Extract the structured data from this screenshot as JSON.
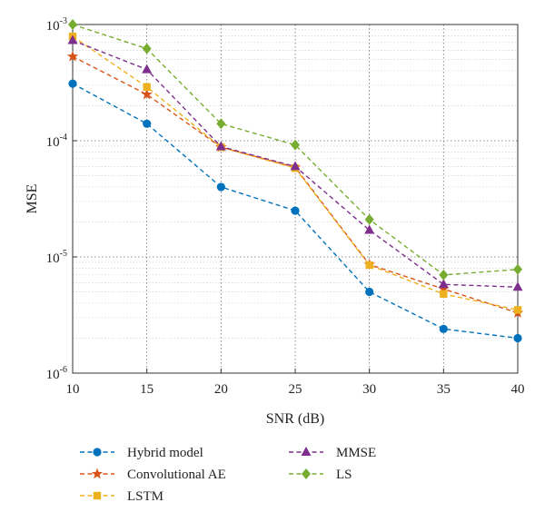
{
  "chart_data": {
    "type": "line",
    "xlabel": "SNR (dB)",
    "ylabel": "MSE",
    "x": [
      10,
      15,
      20,
      25,
      30,
      35,
      40
    ],
    "xlim": [
      10,
      40
    ],
    "ylim": [
      1e-06,
      0.001
    ],
    "yscale": "log",
    "xticks": [
      "10",
      "15",
      "20",
      "25",
      "30",
      "35",
      "40"
    ],
    "yticks": [
      {
        "base": "10",
        "exp": "-6",
        "value": 1e-06
      },
      {
        "base": "10",
        "exp": "-5",
        "value": 1e-05
      },
      {
        "base": "10",
        "exp": "-4",
        "value": 0.0001
      },
      {
        "base": "10",
        "exp": "-3",
        "value": 0.001
      }
    ],
    "grid": true,
    "legend_position": "bottom",
    "series": [
      {
        "name": "Hybrid model",
        "color": "#0072BD",
        "marker": "circle",
        "values": [
          0.00031,
          0.00014,
          4e-05,
          2.5e-05,
          5e-06,
          2.4e-06,
          2e-06
        ]
      },
      {
        "name": "Convolutional AE",
        "color": "#D95319",
        "marker": "star",
        "values": [
          0.00053,
          0.00025,
          8.8e-05,
          5.9e-05,
          8.6e-06,
          5.3e-06,
          3.3e-06
        ]
      },
      {
        "name": "LSTM",
        "color": "#EDB120",
        "marker": "square",
        "values": [
          0.00079,
          0.00029,
          8.8e-05,
          5.8e-05,
          8.5e-06,
          4.8e-06,
          3.5e-06
        ]
      },
      {
        "name": "MMSE",
        "color": "#7E2F8E",
        "marker": "triangle",
        "values": [
          0.00073,
          0.00041,
          8.9e-05,
          6e-05,
          1.7e-05,
          5.8e-06,
          5.5e-06
        ]
      },
      {
        "name": "LS",
        "color": "#77AC30",
        "marker": "diamond",
        "values": [
          0.001,
          0.00062,
          0.00014,
          9.2e-05,
          2.1e-05,
          7e-06,
          7.8e-06
        ]
      }
    ]
  }
}
